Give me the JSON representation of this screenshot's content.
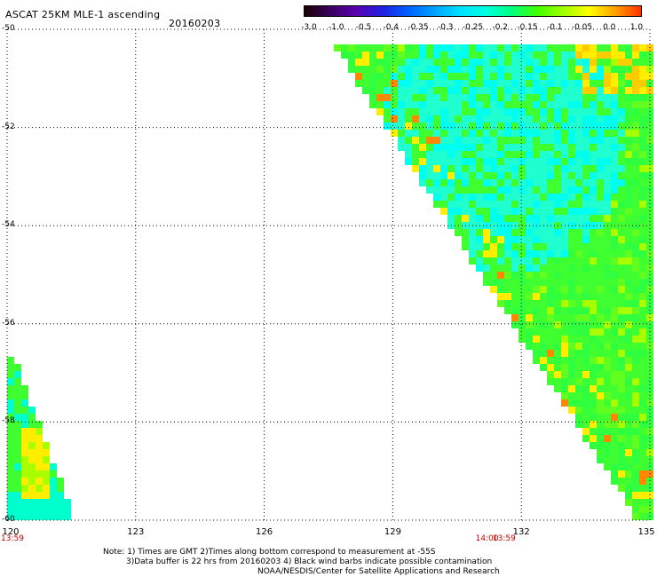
{
  "header": {
    "title": "ASCAT 25KM MLE-1 ascending",
    "date": "20160203"
  },
  "colorbar": {
    "labels": [
      "-3.0",
      "-1.0",
      "-0.5",
      "-0.4",
      "-0.35",
      "-0.3",
      "-0.25",
      "-0.2",
      "-0.15",
      "-0.1",
      "-0.05",
      "0.0",
      "1.0"
    ],
    "colors": [
      "#1a0000",
      "#3a0060",
      "#5a00b0",
      "#2020e0",
      "#0060ff",
      "#00a0ff",
      "#00e0ff",
      "#00ffe0",
      "#00ff80",
      "#40ff00",
      "#a0ff00",
      "#ffff00",
      "#ffa000",
      "#ff3000"
    ]
  },
  "axes": {
    "lat_labels": [
      "-50",
      "-52",
      "-54",
      "-56",
      "-58",
      "-60"
    ],
    "lon_labels": [
      "120",
      "123",
      "126",
      "129",
      "132",
      "135"
    ]
  },
  "time_labels": [
    {
      "text": "13:59",
      "lon": 120.0
    },
    {
      "text": "14:00",
      "lon": 131.2
    },
    {
      "text": "13:59",
      "lon": 131.6
    }
  ],
  "notes": {
    "line1": "Note: 1) Times are GMT 2)Times along bottom correspond to measurement at -55S",
    "line2": "3)Data buffer is 22 hrs from 20160203 4) Black wind barbs indicate possible contamination",
    "line3": "NOAA/NESDIS/Center for Satellite Applications and Research"
  },
  "colors": {
    "grid": "#000000",
    "time_label": "#c00000"
  }
}
